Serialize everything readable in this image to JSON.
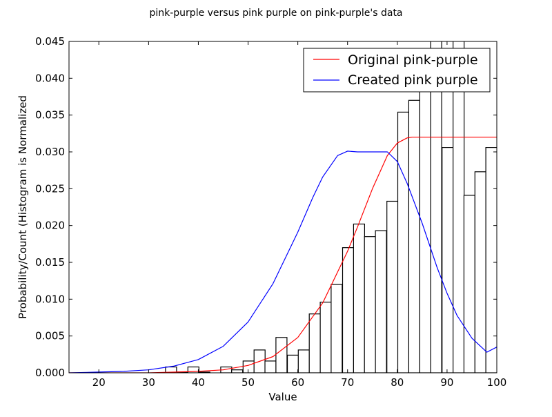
{
  "chart_data": {
    "type": "bar",
    "title": "pink-purple versus pink purple on pink-purple's data",
    "xlabel": "Value",
    "ylabel": "Probability/Count (Histogram is Normalized",
    "xlim": [
      14,
      100
    ],
    "ylim": [
      0,
      0.045
    ],
    "xticks": [
      "20",
      "30",
      "40",
      "50",
      "60",
      "70",
      "80",
      "90",
      "100"
    ],
    "yticks": [
      "0.000",
      "0.005",
      "0.010",
      "0.015",
      "0.020",
      "0.025",
      "0.030",
      "0.035",
      "0.040",
      "0.045"
    ],
    "grid": false,
    "legend_position": "top-right",
    "histogram": {
      "bin_width": 2.22,
      "bins": [
        {
          "left": 33.4,
          "height": 0.0008
        },
        {
          "left": 35.6,
          "height": 0.0001
        },
        {
          "left": 37.9,
          "height": 0.0008
        },
        {
          "left": 40.1,
          "height": 0.0001
        },
        {
          "left": 42.3,
          "height": 0.0
        },
        {
          "left": 44.5,
          "height": 0.0008
        },
        {
          "left": 46.7,
          "height": 0.0004
        },
        {
          "left": 49.0,
          "height": 0.0016
        },
        {
          "left": 51.2,
          "height": 0.0031
        },
        {
          "left": 53.4,
          "height": 0.0016
        },
        {
          "left": 55.6,
          "height": 0.0048
        },
        {
          "left": 57.9,
          "height": 0.0024
        },
        {
          "left": 60.1,
          "height": 0.0031
        },
        {
          "left": 62.3,
          "height": 0.008
        },
        {
          "left": 64.5,
          "height": 0.0096
        },
        {
          "left": 66.7,
          "height": 0.012
        },
        {
          "left": 69.0,
          "height": 0.017
        },
        {
          "left": 71.2,
          "height": 0.0202
        },
        {
          "left": 73.4,
          "height": 0.0185
        },
        {
          "left": 75.6,
          "height": 0.0193
        },
        {
          "left": 77.9,
          "height": 0.0233
        },
        {
          "left": 80.1,
          "height": 0.0354
        },
        {
          "left": 82.3,
          "height": 0.037
        },
        {
          "left": 84.5,
          "height": 0.0386
        },
        {
          "left": 86.7,
          "height": 0.046
        },
        {
          "left": 89.0,
          "height": 0.0306
        },
        {
          "left": 91.2,
          "height": 0.046
        },
        {
          "left": 93.4,
          "height": 0.0241
        },
        {
          "left": 95.6,
          "height": 0.0273
        },
        {
          "left": 97.8,
          "height": 0.0306
        }
      ]
    },
    "series": [
      {
        "name": "Original pink-purple",
        "color": "#ff0000",
        "x": [
          14,
          20,
          30,
          40,
          45,
          50,
          55,
          60,
          65,
          70,
          72,
          75,
          78,
          80,
          82,
          83,
          85,
          90,
          100
        ],
        "y": [
          0.0,
          0.0,
          0.0,
          0.0002,
          0.0004,
          0.001,
          0.0022,
          0.0048,
          0.0095,
          0.0165,
          0.0198,
          0.025,
          0.0295,
          0.0312,
          0.0319,
          0.032,
          0.032,
          0.032,
          0.032
        ]
      },
      {
        "name": "Created pink purple",
        "color": "#0000ff",
        "x": [
          14,
          20,
          25,
          30,
          35,
          40,
          45,
          50,
          55,
          60,
          63,
          65,
          68,
          70,
          72,
          75,
          78,
          80,
          82,
          85,
          88,
          90,
          92,
          95,
          98,
          100
        ],
        "y": [
          0.0,
          0.0001,
          0.0002,
          0.0004,
          0.0009,
          0.0018,
          0.0036,
          0.0069,
          0.0121,
          0.0191,
          0.0238,
          0.0266,
          0.0295,
          0.0301,
          0.03,
          0.03,
          0.03,
          0.0287,
          0.0257,
          0.0203,
          0.0143,
          0.0108,
          0.0078,
          0.0047,
          0.0028,
          0.0035
        ]
      }
    ]
  }
}
